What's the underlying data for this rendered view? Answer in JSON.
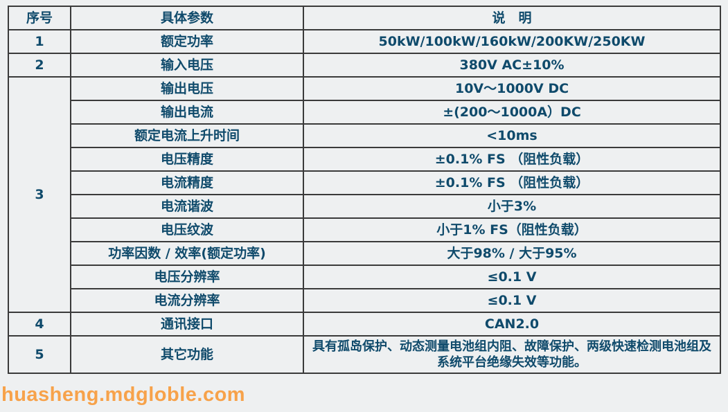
{
  "header": {
    "no": "序号",
    "param": "具体参数",
    "desc": "说　明"
  },
  "rows": [
    {
      "no": "1",
      "param": "额定功率",
      "desc": "50kW/100kW/160kW/200KW/250KW"
    },
    {
      "no": "2",
      "param": "输入电压",
      "desc": "380V AC±10%"
    },
    {
      "no": "3",
      "param": "输出电压",
      "desc": "10V～1000V DC"
    },
    {
      "param": "输出电流",
      "desc": "±(200～1000A）DC"
    },
    {
      "param": "额定电流上升时间",
      "desc": "<10ms"
    },
    {
      "param": "电压精度",
      "desc": "±0.1% FS （阻性负载）"
    },
    {
      "param": "电流精度",
      "desc": "±0.1% FS （阻性负载）"
    },
    {
      "param": "电流谐波",
      "desc": "小于3%"
    },
    {
      "param": "电压纹波",
      "desc": "小于1% FS（阻性负载）"
    },
    {
      "param": "功率因数 / 效率(额定功率)",
      "desc": "大于98% / 大于95%"
    },
    {
      "param": "电压分辨率",
      "desc": "≤0.1 V"
    },
    {
      "param": "电流分辨率",
      "desc": "≤0.1 V"
    },
    {
      "no": "4",
      "param": "通讯接口",
      "desc": "CAN2.0"
    },
    {
      "no": "5",
      "param": "其它功能",
      "desc": "具有孤岛保护、动态测量电池组内阻、故障保护、两级快速检测电池组及系统平台绝缘失效等功能。"
    }
  ],
  "watermark": "huasheng.mdgloble.com"
}
